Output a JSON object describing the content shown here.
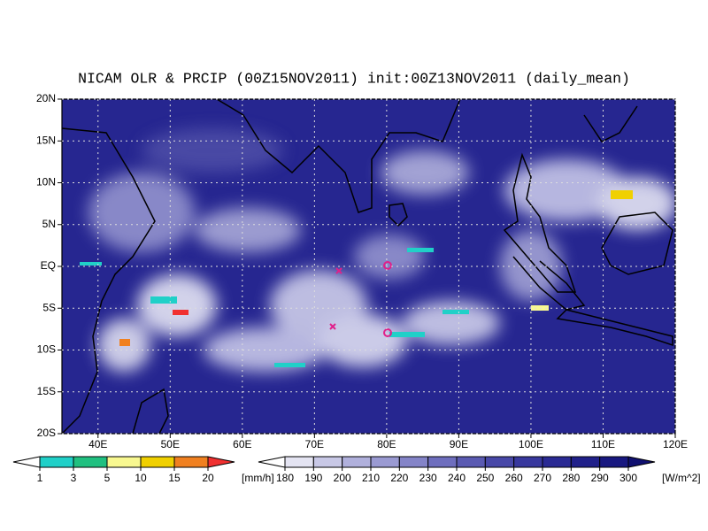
{
  "map": {
    "title": "NICAM OLR & PRCIP (00Z15NOV2011) init:00Z13NOV2011 (daily_mean)",
    "lonlim": [
      35,
      120
    ],
    "latlim": [
      -20,
      20
    ],
    "lon_ticks": [
      {
        "value": 40,
        "label": "40E"
      },
      {
        "value": 50,
        "label": "50E"
      },
      {
        "value": 60,
        "label": "60E"
      },
      {
        "value": 70,
        "label": "70E"
      },
      {
        "value": 80,
        "label": "80E"
      },
      {
        "value": 90,
        "label": "90E"
      },
      {
        "value": 100,
        "label": "100E"
      },
      {
        "value": 110,
        "label": "110E"
      },
      {
        "value": 120,
        "label": "120E"
      }
    ],
    "lat_ticks": [
      {
        "value": 20,
        "label": "20N"
      },
      {
        "value": 15,
        "label": "15N"
      },
      {
        "value": 10,
        "label": "10N"
      },
      {
        "value": 5,
        "label": "5N"
      },
      {
        "value": 0,
        "label": "EQ"
      },
      {
        "value": -5,
        "label": "5S"
      },
      {
        "value": -10,
        "label": "10S"
      },
      {
        "value": -15,
        "label": "15S"
      },
      {
        "value": -20,
        "label": "20S"
      }
    ],
    "precip_legend": {
      "labels": [
        "1",
        "3",
        "5",
        "10",
        "15",
        "20"
      ],
      "unit": "[mm/h]",
      "colors": [
        "#ffffff",
        "#20d0c8",
        "#20c080",
        "#f8f890",
        "#f0d000",
        "#f08020",
        "#f03030"
      ]
    },
    "olr_legend": {
      "labels": [
        "180",
        "190",
        "200",
        "210",
        "220",
        "230",
        "240",
        "250",
        "260",
        "270",
        "280",
        "290",
        "300"
      ],
      "unit": "[W/m^2]",
      "colors": [
        "#ffffff",
        "#e4e4f2",
        "#c8c8e6",
        "#b0b0dc",
        "#9a9ad2",
        "#8484c8",
        "#6e6ebe",
        "#5a5ab2",
        "#4848a8",
        "#38389e",
        "#2a2a94",
        "#20208a",
        "#181880",
        "#101070"
      ]
    }
  }
}
